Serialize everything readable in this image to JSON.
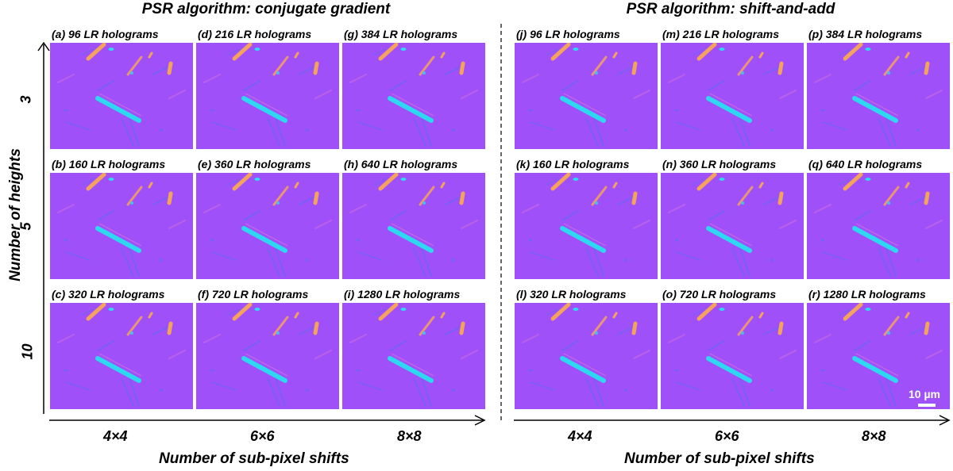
{
  "groups": [
    {
      "title": "PSR algorithm: conjugate gradient",
      "panels": [
        [
          "(a) 96 LR holograms",
          "(d) 216 LR holograms",
          "(g) 384 LR holograms"
        ],
        [
          "(b) 160 LR holograms",
          "(e) 360 LR holograms",
          "(h) 640 LR holograms"
        ],
        [
          "(c) 320 LR holograms",
          "(f) 720 LR holograms",
          "(i) 1280 LR holograms"
        ]
      ],
      "x_ticks": [
        "4×4",
        "6×6",
        "8×8"
      ],
      "x_title": "Number of sub-pixel shifts"
    },
    {
      "title": "PSR algorithm: shift-and-add",
      "panels": [
        [
          "(j) 96 LR holograms",
          "(m) 216 LR holograms",
          "(p) 384 LR holograms"
        ],
        [
          "(k) 160 LR holograms",
          "(n) 360 LR holograms",
          "(q) 640 LR holograms"
        ],
        [
          "(l) 320 LR holograms",
          "(o) 720 LR holograms",
          "(r) 1280 LR holograms"
        ]
      ],
      "x_ticks": [
        "4×4",
        "6×6",
        "8×8"
      ],
      "x_title": "Number of sub-pixel shifts"
    }
  ],
  "y_ticks": [
    "3",
    "5",
    "10"
  ],
  "y_title": "Number of heights",
  "scale_bar": "10 µm",
  "colors": {
    "background": "#a050f8",
    "cyan": "#2ed8f0",
    "orange": "#f5a35c",
    "blue_streak": "#5b6cf0",
    "pink_streak": "#d070e0"
  }
}
